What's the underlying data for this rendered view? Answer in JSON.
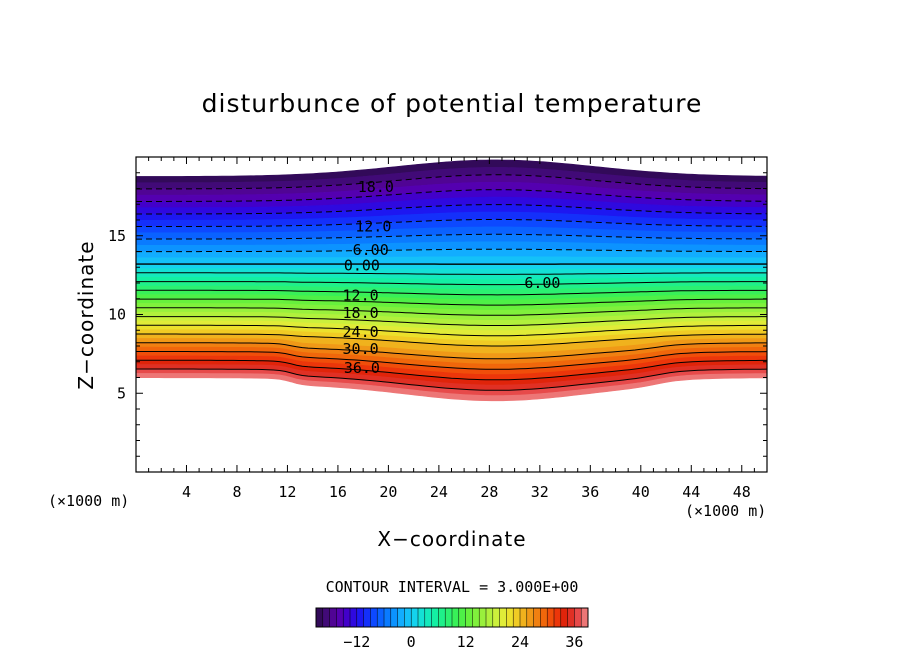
{
  "chart_data": {
    "type": "heatmap",
    "title": "disturbunce of potential temperature",
    "xlabel": "X−coordinate",
    "ylabel": "Z−coordinate",
    "x_unit_left": "(×1000 m)",
    "x_unit_right": "(×1000 m)",
    "xlim": [
      0,
      50
    ],
    "ylim": [
      0,
      20
    ],
    "x_ticks": [
      4,
      8,
      12,
      16,
      20,
      24,
      28,
      32,
      36,
      40,
      44,
      48
    ],
    "x_tick_labels": [
      "4",
      "8",
      "12",
      "16",
      "20",
      "24",
      "28",
      "32",
      "36",
      "40",
      "44",
      "48"
    ],
    "y_ticks": [
      5,
      10,
      15
    ],
    "y_tick_labels": [
      "5",
      "10",
      "15"
    ],
    "contour_interval_text": "CONTOUR INTERVAL = 3.000E+00",
    "contour_interval": 3,
    "value_range": [
      -21,
      39
    ],
    "contour_labels": [
      {
        "text": "18.0",
        "x": 19,
        "z": 18.1
      },
      {
        "text": "12.0",
        "x": 18.8,
        "z": 15.6
      },
      {
        "text": "6.00",
        "x": 18.6,
        "z": 14.1
      },
      {
        "text": "0.00",
        "x": 17.9,
        "z": 13.1
      },
      {
        "text": "6.00",
        "x": 32.2,
        "z": 12.0
      },
      {
        "text": "12.0",
        "x": 17.8,
        "z": 11.2
      },
      {
        "text": "18.0",
        "x": 17.8,
        "z": 10.1
      },
      {
        "text": "24.0",
        "x": 17.8,
        "z": 8.9
      },
      {
        "text": "30.0",
        "x": 17.8,
        "z": 7.8
      },
      {
        "text": "36.0",
        "x": 17.9,
        "z": 6.6
      }
    ],
    "colorbar": {
      "tick_values": [
        -12,
        0,
        12,
        24,
        36
      ],
      "tick_labels": [
        "−12",
        "0",
        "12",
        "24",
        "36"
      ],
      "colors": [
        "#2a0a4a",
        "#420a7a",
        "#5a00a8",
        "#3c00d2",
        "#1e14f0",
        "#0f3cff",
        "#0a64ff",
        "#0a8cff",
        "#14b4ff",
        "#14d2f0",
        "#14e6c8",
        "#14f0a0",
        "#28f078",
        "#3cf050",
        "#64f03c",
        "#8cf03c",
        "#b4f03c",
        "#dcf03c",
        "#f0dc28",
        "#f0b41e",
        "#f08c14",
        "#f0640a",
        "#f03c0a",
        "#dc1e0a",
        "#e64646",
        "#f08c8c"
      ]
    }
  }
}
